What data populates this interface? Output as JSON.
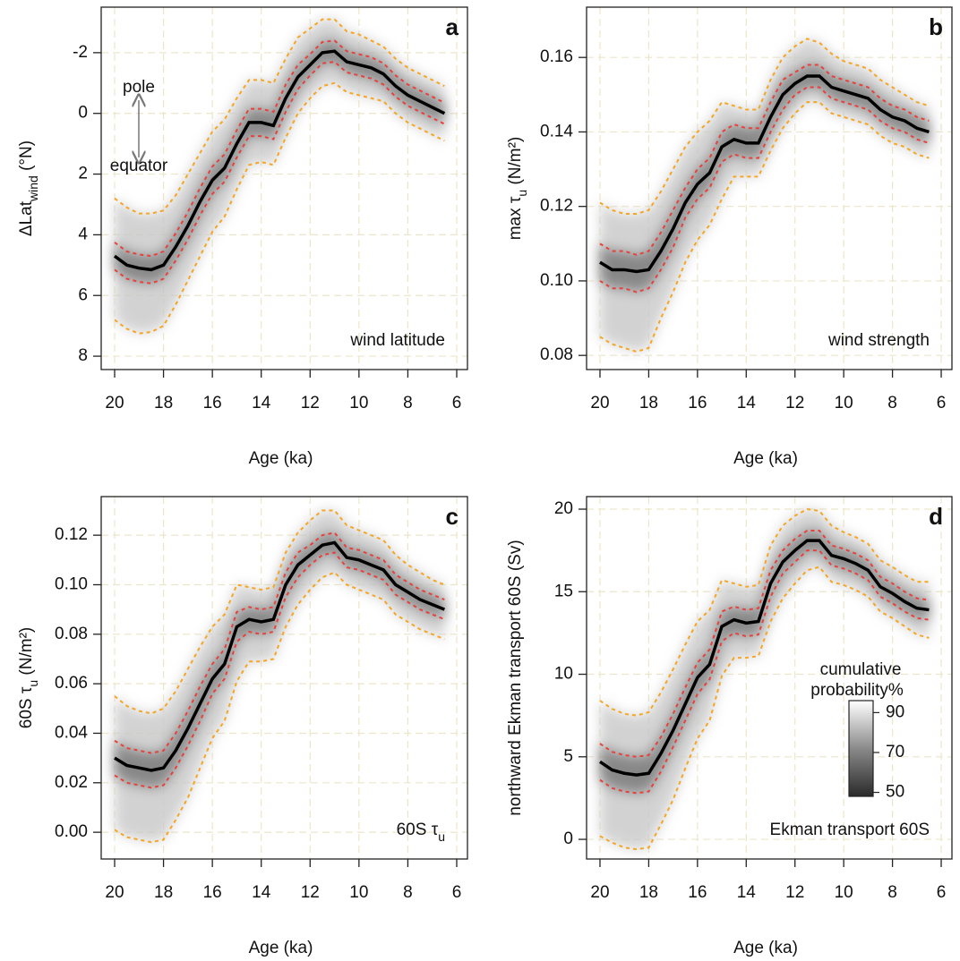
{
  "chart_data": [
    {
      "type": "line",
      "panel_label": "a",
      "xlabel": "Age (ka)",
      "ylabel": [
        {
          "text": "ΔLat"
        },
        {
          "text": "wind",
          "sub": true
        },
        {
          "text": " (°N)"
        }
      ],
      "annotation": [
        {
          "text": "wind latitude"
        }
      ],
      "arrow_labels": [
        "pole",
        "equator"
      ],
      "grid": true,
      "xlim": [
        20.55,
        5.56
      ],
      "xticks": [
        20,
        18,
        16,
        14,
        12,
        10,
        8,
        6
      ],
      "ylim": [
        8.44,
        -3.5
      ],
      "yticks": [
        -2,
        0,
        2,
        4,
        6,
        8
      ],
      "x": [
        20,
        19.5,
        19,
        18.5,
        18,
        17.5,
        17,
        16.5,
        16,
        15.5,
        15,
        14.5,
        14,
        13.5,
        13,
        12.5,
        12,
        11.5,
        11,
        10.5,
        10,
        9.5,
        9,
        8.5,
        8,
        7.5,
        7,
        6.5
      ],
      "series": [
        {
          "color": "#000000",
          "dashed": false,
          "values": [
            4.7,
            5.0,
            5.1,
            5.15,
            5.0,
            4.4,
            3.7,
            2.9,
            2.2,
            1.8,
            1.0,
            0.3,
            0.3,
            0.4,
            -0.5,
            -1.2,
            -1.6,
            -2.0,
            -2.05,
            -1.7,
            -1.6,
            -1.5,
            -1.3,
            -0.9,
            -0.6,
            -0.4,
            -0.2,
            0.0
          ]
        },
        {
          "color": "#e8413c",
          "dashed": true,
          "values": [
            4.25,
            4.55,
            4.65,
            4.7,
            4.55,
            3.95,
            3.25,
            2.45,
            1.75,
            1.35,
            0.55,
            -0.15,
            -0.15,
            -0.05,
            -0.95,
            -1.6,
            -1.95,
            -2.35,
            -2.4,
            -2.05,
            -1.95,
            -1.85,
            -1.65,
            -1.25,
            -0.95,
            -0.75,
            -0.55,
            -0.35
          ]
        },
        {
          "color": "#e8413c",
          "dashed": true,
          "values": [
            5.15,
            5.45,
            5.55,
            5.6,
            5.45,
            4.85,
            4.15,
            3.35,
            2.65,
            2.25,
            1.45,
            0.75,
            0.75,
            0.85,
            -0.05,
            -0.8,
            -1.25,
            -1.65,
            -1.7,
            -1.35,
            -1.25,
            -1.15,
            -0.95,
            -0.55,
            -0.25,
            -0.05,
            0.15,
            0.35
          ]
        },
        {
          "color": "#f5a623",
          "dashed": true,
          "values": [
            2.8,
            3.1,
            3.3,
            3.3,
            3.2,
            2.7,
            2.0,
            1.3,
            0.6,
            0.2,
            -0.5,
            -1.1,
            -1.1,
            -1.0,
            -1.8,
            -2.5,
            -2.8,
            -3.1,
            -3.1,
            -2.7,
            -2.6,
            -2.4,
            -2.2,
            -1.8,
            -1.5,
            -1.3,
            -1.1,
            -0.9
          ]
        },
        {
          "color": "#f5a623",
          "dashed": true,
          "values": [
            6.8,
            7.1,
            7.25,
            7.2,
            7.0,
            6.3,
            5.5,
            4.7,
            3.9,
            3.4,
            2.5,
            1.7,
            1.6,
            1.7,
            0.8,
            0.0,
            -0.5,
            -0.9,
            -1.0,
            -0.7,
            -0.6,
            -0.5,
            -0.4,
            0.0,
            0.3,
            0.5,
            0.7,
            0.9
          ]
        }
      ]
    },
    {
      "type": "line",
      "panel_label": "b",
      "xlabel": "Age (ka)",
      "ylabel": [
        {
          "text": "max τ"
        },
        {
          "text": "u",
          "sub": true
        },
        {
          "text": " (N/m²)"
        }
      ],
      "annotation": [
        {
          "text": "wind strength"
        }
      ],
      "grid": true,
      "xlim": [
        20.55,
        5.56
      ],
      "xticks": [
        20,
        18,
        16,
        14,
        12,
        10,
        8,
        6
      ],
      "ylim": [
        0.0762,
        0.1735
      ],
      "yticks": [
        0.08,
        {
          "value": 0.1,
          "label": "0.10"
        },
        0.12,
        0.14,
        0.16
      ],
      "x": [
        20,
        19.5,
        19,
        18.5,
        18,
        17.5,
        17,
        16.5,
        16,
        15.5,
        15,
        14.5,
        14,
        13.5,
        13,
        12.5,
        12,
        11.5,
        11,
        10.5,
        10,
        9.5,
        9,
        8.5,
        8,
        7.5,
        7,
        6.5
      ],
      "series": [
        {
          "color": "#000000",
          "dashed": false,
          "values": [
            0.105,
            0.103,
            0.103,
            0.1025,
            0.103,
            0.108,
            0.114,
            0.121,
            0.126,
            0.129,
            0.136,
            0.138,
            0.137,
            0.137,
            0.144,
            0.15,
            0.153,
            0.155,
            0.155,
            0.152,
            0.151,
            0.15,
            0.149,
            0.146,
            0.144,
            0.143,
            0.141,
            0.14
          ]
        },
        {
          "color": "#e8413c",
          "dashed": true,
          "values": [
            0.11,
            0.108,
            0.108,
            0.107,
            0.108,
            0.113,
            0.119,
            0.125,
            0.13,
            0.133,
            0.14,
            0.142,
            0.141,
            0.141,
            0.148,
            0.154,
            0.156,
            0.158,
            0.158,
            0.155,
            0.154,
            0.153,
            0.152,
            0.149,
            0.147,
            0.146,
            0.144,
            0.143
          ]
        },
        {
          "color": "#e8413c",
          "dashed": true,
          "values": [
            0.1,
            0.098,
            0.098,
            0.097,
            0.098,
            0.103,
            0.109,
            0.117,
            0.122,
            0.125,
            0.132,
            0.134,
            0.133,
            0.133,
            0.14,
            0.146,
            0.15,
            0.152,
            0.152,
            0.149,
            0.148,
            0.147,
            0.146,
            0.143,
            0.141,
            0.14,
            0.138,
            0.137
          ]
        },
        {
          "color": "#f5a623",
          "dashed": true,
          "values": [
            0.121,
            0.119,
            0.118,
            0.118,
            0.119,
            0.124,
            0.13,
            0.136,
            0.14,
            0.143,
            0.148,
            0.147,
            0.146,
            0.146,
            0.154,
            0.16,
            0.163,
            0.165,
            0.164,
            0.161,
            0.159,
            0.158,
            0.157,
            0.154,
            0.152,
            0.15,
            0.148,
            0.147
          ]
        },
        {
          "color": "#f5a623",
          "dashed": true,
          "values": [
            0.085,
            0.083,
            0.082,
            0.081,
            0.082,
            0.09,
            0.097,
            0.105,
            0.111,
            0.115,
            0.122,
            0.128,
            0.128,
            0.128,
            0.135,
            0.141,
            0.145,
            0.148,
            0.148,
            0.145,
            0.144,
            0.143,
            0.142,
            0.139,
            0.137,
            0.136,
            0.134,
            0.133
          ]
        }
      ]
    },
    {
      "type": "line",
      "panel_label": "c",
      "xlabel": "Age (ka)",
      "ylabel": [
        {
          "text": "60S τ"
        },
        {
          "text": "u",
          "sub": true
        },
        {
          "text": " (N/m²)"
        }
      ],
      "annotation": [
        {
          "text": "60S τ"
        },
        {
          "text": "u",
          "sub": true
        }
      ],
      "grid": true,
      "xlim": [
        20.55,
        5.56
      ],
      "xticks": [
        20,
        18,
        16,
        14,
        12,
        10,
        8,
        6
      ],
      "ylim": [
        -0.0108,
        0.1356
      ],
      "yticks": [
        {
          "value": 0,
          "label": "0.00"
        },
        0.02,
        0.04,
        0.06,
        0.08,
        {
          "value": 0.1,
          "label": "0.10"
        },
        0.12
      ],
      "x": [
        20,
        19.5,
        19,
        18.5,
        18,
        17.5,
        17,
        16.5,
        16,
        15.5,
        15,
        14.5,
        14,
        13.5,
        13,
        12.5,
        12,
        11.5,
        11,
        10.5,
        10,
        9.5,
        9,
        8.5,
        8,
        7.5,
        7,
        6.5
      ],
      "series": [
        {
          "color": "#000000",
          "dashed": false,
          "values": [
            0.03,
            0.027,
            0.026,
            0.025,
            0.026,
            0.033,
            0.042,
            0.052,
            0.062,
            0.068,
            0.083,
            0.086,
            0.085,
            0.086,
            0.1,
            0.108,
            0.112,
            0.116,
            0.117,
            0.111,
            0.11,
            0.108,
            0.106,
            0.1,
            0.097,
            0.094,
            0.092,
            0.09
          ]
        },
        {
          "color": "#e8413c",
          "dashed": true,
          "values": [
            0.037,
            0.034,
            0.033,
            0.032,
            0.033,
            0.04,
            0.049,
            0.059,
            0.068,
            0.074,
            0.089,
            0.091,
            0.09,
            0.091,
            0.105,
            0.113,
            0.116,
            0.12,
            0.121,
            0.115,
            0.114,
            0.112,
            0.11,
            0.104,
            0.101,
            0.098,
            0.096,
            0.094
          ]
        },
        {
          "color": "#e8413c",
          "dashed": true,
          "values": [
            0.023,
            0.02,
            0.019,
            0.018,
            0.019,
            0.026,
            0.035,
            0.045,
            0.056,
            0.062,
            0.077,
            0.081,
            0.08,
            0.081,
            0.095,
            0.103,
            0.108,
            0.112,
            0.113,
            0.107,
            0.106,
            0.104,
            0.102,
            0.096,
            0.093,
            0.09,
            0.088,
            0.086
          ]
        },
        {
          "color": "#f5a623",
          "dashed": true,
          "values": [
            0.055,
            0.051,
            0.049,
            0.048,
            0.05,
            0.057,
            0.066,
            0.075,
            0.083,
            0.088,
            0.1,
            0.099,
            0.098,
            0.099,
            0.113,
            0.121,
            0.126,
            0.13,
            0.13,
            0.124,
            0.122,
            0.12,
            0.118,
            0.112,
            0.108,
            0.105,
            0.102,
            0.1
          ]
        },
        {
          "color": "#f5a623",
          "dashed": true,
          "values": [
            0.001,
            -0.002,
            -0.003,
            -0.004,
            -0.003,
            0.005,
            0.014,
            0.026,
            0.038,
            0.045,
            0.061,
            0.069,
            0.069,
            0.07,
            0.083,
            0.092,
            0.098,
            0.103,
            0.105,
            0.1,
            0.098,
            0.096,
            0.094,
            0.088,
            0.085,
            0.082,
            0.08,
            0.078
          ]
        }
      ]
    },
    {
      "type": "line",
      "panel_label": "d",
      "xlabel": "Age (ka)",
      "ylabel": [
        {
          "text": "northward Ekman transport 60S (Sv)"
        }
      ],
      "annotation": [
        {
          "text": "Ekman transport 60S"
        }
      ],
      "colorbar": {
        "title": [
          "cumulative",
          "probability%"
        ],
        "lim": [
          48,
          96
        ],
        "ticks": [
          90,
          70,
          50
        ]
      },
      "grid": true,
      "xlim": [
        20.55,
        5.56
      ],
      "xticks": [
        20,
        18,
        16,
        14,
        12,
        10,
        8,
        6
      ],
      "ylim": [
        -1.19,
        20.76
      ],
      "yticks": [
        0,
        5,
        10,
        15,
        20
      ],
      "x": [
        20,
        19.5,
        19,
        18.5,
        18,
        17.5,
        17,
        16.5,
        16,
        15.5,
        15,
        14.5,
        14,
        13.5,
        13,
        12.5,
        12,
        11.5,
        11,
        10.5,
        10,
        9.5,
        9,
        8.5,
        8,
        7.5,
        7,
        6.5
      ],
      "series": [
        {
          "color": "#000000",
          "dashed": false,
          "values": [
            4.7,
            4.2,
            4.0,
            3.9,
            4.0,
            5.2,
            6.6,
            8.2,
            9.8,
            10.6,
            12.9,
            13.3,
            13.1,
            13.2,
            15.5,
            16.8,
            17.5,
            18.1,
            18.1,
            17.2,
            17.0,
            16.7,
            16.3,
            15.3,
            14.9,
            14.4,
            14.0,
            13.9
          ]
        },
        {
          "color": "#e8413c",
          "dashed": true,
          "values": [
            5.8,
            5.3,
            5.1,
            5.0,
            5.1,
            6.2,
            7.6,
            9.2,
            10.7,
            11.5,
            13.8,
            14.1,
            13.9,
            14.0,
            16.3,
            17.5,
            18.2,
            18.7,
            18.7,
            17.8,
            17.6,
            17.3,
            16.9,
            15.9,
            15.5,
            15.0,
            14.6,
            14.5
          ]
        },
        {
          "color": "#e8413c",
          "dashed": true,
          "values": [
            3.6,
            3.1,
            2.9,
            2.8,
            2.9,
            4.1,
            5.6,
            7.2,
            8.8,
            9.7,
            12.0,
            12.5,
            12.3,
            12.4,
            14.7,
            16.1,
            16.8,
            17.5,
            17.5,
            16.6,
            16.4,
            16.1,
            15.7,
            14.7,
            14.3,
            13.8,
            13.4,
            13.3
          ]
        },
        {
          "color": "#f5a623",
          "dashed": true,
          "values": [
            8.4,
            7.9,
            7.6,
            7.5,
            7.7,
            8.9,
            10.3,
            11.8,
            13.2,
            13.9,
            15.7,
            15.5,
            15.3,
            15.4,
            17.8,
            19.0,
            19.6,
            20.0,
            19.9,
            19.0,
            18.6,
            18.3,
            17.9,
            16.9,
            16.5,
            16.0,
            15.6,
            15.6
          ]
        },
        {
          "color": "#f5a623",
          "dashed": true,
          "values": [
            0.2,
            -0.2,
            -0.5,
            -0.6,
            -0.5,
            0.9,
            2.4,
            4.3,
            6.1,
            7.2,
            9.9,
            11.0,
            11.0,
            11.1,
            13.2,
            14.6,
            15.5,
            16.3,
            16.5,
            15.6,
            15.4,
            15.1,
            14.7,
            13.8,
            13.4,
            12.9,
            12.4,
            12.2
          ]
        }
      ]
    }
  ]
}
